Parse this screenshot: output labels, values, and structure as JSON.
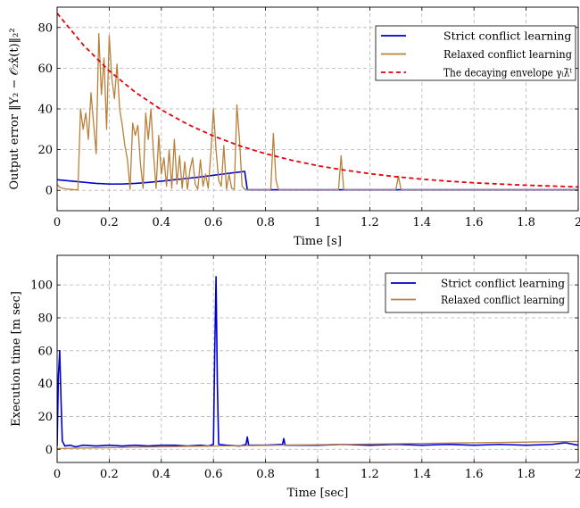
{
  "chart_data": [
    {
      "type": "line",
      "xlabel": "Time [s]",
      "ylabel": "Output error ‖Y₂ − 𝒪₂x̂(t)‖₂²",
      "xlim": [
        0,
        2
      ],
      "ylim": [
        -10,
        90
      ],
      "xticks": [
        0,
        0.2,
        0.4,
        0.6,
        0.8,
        1,
        1.2,
        1.4,
        1.6,
        1.8,
        2
      ],
      "xtick_labels": [
        "0",
        "0.2",
        "0.4",
        "0.6",
        "0.8",
        "1",
        "1.2",
        "1.4",
        "1.6",
        "1.8",
        "2"
      ],
      "yticks": [
        0,
        20,
        40,
        60,
        80
      ],
      "ytick_labels": [
        "0",
        "20",
        "40",
        "60",
        "80"
      ],
      "grid": true,
      "legend_position": "top-right",
      "series": [
        {
          "name": "Strict conflict learning",
          "color": "#0000cc",
          "style": "solid",
          "x": [
            0,
            0.05,
            0.1,
            0.15,
            0.2,
            0.25,
            0.3,
            0.35,
            0.4,
            0.45,
            0.5,
            0.55,
            0.6,
            0.65,
            0.7,
            0.72,
            0.73,
            0.8,
            1.0,
            1.2,
            1.4,
            1.6,
            1.8,
            2.0
          ],
          "y": [
            5.2,
            4.6,
            4.0,
            3.4,
            3.1,
            3.1,
            3.4,
            3.9,
            4.5,
            5.2,
            5.9,
            6.6,
            7.4,
            8.2,
            9.0,
            9.3,
            0.3,
            0.3,
            0.3,
            0.3,
            0.3,
            0.3,
            0.3,
            0.3
          ]
        },
        {
          "name": "Relaxed conflict learning",
          "color": "#b8803a",
          "style": "solid",
          "x": [
            0,
            0.01,
            0.02,
            0.04,
            0.06,
            0.08,
            0.09,
            0.1,
            0.11,
            0.12,
            0.13,
            0.14,
            0.15,
            0.16,
            0.17,
            0.18,
            0.19,
            0.2,
            0.21,
            0.22,
            0.23,
            0.24,
            0.25,
            0.26,
            0.27,
            0.28,
            0.29,
            0.3,
            0.31,
            0.32,
            0.33,
            0.34,
            0.35,
            0.36,
            0.37,
            0.38,
            0.39,
            0.4,
            0.41,
            0.42,
            0.43,
            0.44,
            0.45,
            0.46,
            0.47,
            0.48,
            0.49,
            0.5,
            0.51,
            0.52,
            0.53,
            0.54,
            0.55,
            0.56,
            0.57,
            0.58,
            0.59,
            0.6,
            0.61,
            0.62,
            0.63,
            0.64,
            0.65,
            0.66,
            0.67,
            0.68,
            0.69,
            0.7,
            0.71,
            0.72,
            0.73,
            0.74,
            0.76,
            0.78,
            0.8,
            0.82,
            0.83,
            0.84,
            0.85,
            0.86,
            0.87,
            0.88,
            1.0,
            1.08,
            1.09,
            1.1,
            1.3,
            1.31,
            1.32,
            2.0
          ],
          "y": [
            3,
            1.5,
            1,
            0.6,
            0.4,
            0.2,
            40,
            30,
            38,
            25,
            48,
            33,
            18,
            77,
            47,
            65,
            30,
            76,
            55,
            45,
            62,
            40,
            32,
            22,
            15,
            0.5,
            33,
            27,
            32,
            13,
            1,
            38,
            25,
            40,
            18,
            1,
            27,
            8,
            16,
            2,
            20,
            1,
            25,
            3,
            17,
            1,
            14,
            0.5,
            10,
            16,
            3,
            0.5,
            15,
            2,
            8,
            1,
            18,
            40,
            20,
            5,
            2,
            22,
            0.5,
            8,
            1,
            0.5,
            42,
            25,
            2,
            0.5,
            0.3,
            0.3,
            0.3,
            0.3,
            0.3,
            0.3,
            28,
            5,
            0.3,
            0.3,
            0.3,
            0.3,
            0.3,
            0.3,
            17,
            0.3,
            0.3,
            7,
            0.3,
            0.3
          ]
        },
        {
          "name": "The decaying envelope γᵢλ̄ᵗ",
          "color": "#e8000b",
          "style": "dashed",
          "x": [
            0,
            0.1,
            0.2,
            0.3,
            0.4,
            0.5,
            0.6,
            0.7,
            0.8,
            0.9,
            1.0,
            1.1,
            1.2,
            1.3,
            1.4,
            1.5,
            1.6,
            1.7,
            1.8,
            1.9,
            2.0
          ],
          "y": [
            87,
            71.5,
            58.7,
            48.2,
            39.6,
            32.5,
            26.7,
            21.9,
            18.0,
            14.8,
            12.1,
            10.0,
            8.2,
            6.7,
            5.5,
            4.5,
            3.7,
            3.1,
            2.5,
            2.1,
            1.7
          ]
        }
      ]
    },
    {
      "type": "line",
      "xlabel": "Time [sec]",
      "ylabel": "Execution time [m sec]",
      "xlim": [
        0,
        2
      ],
      "ylim": [
        -8,
        118
      ],
      "xticks": [
        0,
        0.2,
        0.4,
        0.6,
        0.8,
        1,
        1.2,
        1.4,
        1.6,
        1.8,
        2
      ],
      "xtick_labels": [
        "0",
        "0.2",
        "0.4",
        "0.6",
        "0.8",
        "1",
        "1.2",
        "1.4",
        "1.6",
        "1.8",
        "2"
      ],
      "yticks": [
        0,
        20,
        40,
        60,
        80,
        100
      ],
      "ytick_labels": [
        "0",
        "20",
        "40",
        "60",
        "80",
        "100"
      ],
      "grid": true,
      "legend_position": "top-right",
      "series": [
        {
          "name": "Strict conflict learning",
          "color": "#0000cc",
          "style": "solid",
          "x": [
            0,
            0.005,
            0.01,
            0.015,
            0.02,
            0.03,
            0.05,
            0.07,
            0.1,
            0.15,
            0.2,
            0.25,
            0.3,
            0.35,
            0.4,
            0.45,
            0.5,
            0.55,
            0.58,
            0.6,
            0.605,
            0.61,
            0.615,
            0.62,
            0.65,
            0.7,
            0.725,
            0.73,
            0.735,
            0.8,
            0.865,
            0.87,
            0.875,
            0.9,
            1.0,
            1.1,
            1.2,
            1.3,
            1.4,
            1.5,
            1.6,
            1.7,
            1.8,
            1.9,
            1.95,
            2.0
          ],
          "y": [
            2,
            45,
            60,
            30,
            5,
            2,
            2.5,
            1.5,
            2.5,
            2,
            2.5,
            2,
            2.5,
            2,
            2.5,
            2.5,
            2,
            2.5,
            2,
            3,
            60,
            105,
            40,
            3,
            2.5,
            2,
            3,
            7.5,
            2.5,
            2.5,
            3,
            6.5,
            2.5,
            2.5,
            2.5,
            3,
            2.5,
            3,
            2.5,
            3,
            2.5,
            3,
            2.5,
            3,
            4,
            2.5
          ]
        },
        {
          "name": "Relaxed conflict learning",
          "color": "#b8803a",
          "style": "solid",
          "x": [
            0,
            0.1,
            0.2,
            0.3,
            0.4,
            0.5,
            0.6,
            0.7,
            0.8,
            0.9,
            1.0,
            1.1,
            1.2,
            1.3,
            1.4,
            1.5,
            1.6,
            1.7,
            1.8,
            1.9,
            2.0
          ],
          "y": [
            0.5,
            0.8,
            1.0,
            1.3,
            1.5,
            1.8,
            2.0,
            2.2,
            2.4,
            2.6,
            2.8,
            3.0,
            3.2,
            3.4,
            3.6,
            3.8,
            4.0,
            4.2,
            4.4,
            4.6,
            4.8
          ]
        }
      ]
    }
  ]
}
